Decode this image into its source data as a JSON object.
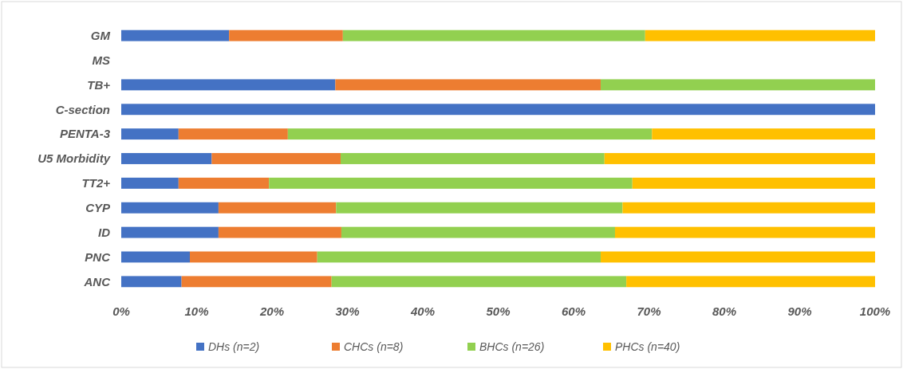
{
  "chart_data": {
    "type": "bar",
    "orientation": "horizontal",
    "stacked": true,
    "categories": [
      "GM",
      "MS",
      "TB+",
      "C-section",
      "PENTA-3",
      "U5 Morbidity",
      "TT2+",
      "CYP",
      "ID",
      "PNC",
      "ANC"
    ],
    "series": [
      {
        "name": "DHs (n=2)",
        "color": "#4472c4",
        "values": [
          14.3,
          null,
          28.4,
          100,
          7.6,
          12.0,
          7.6,
          12.9,
          12.9,
          9.1,
          8.0
        ]
      },
      {
        "name": "CHCs (n=8)",
        "color": "#ed7d31",
        "values": [
          15.1,
          null,
          35.2,
          0,
          14.5,
          17.1,
          12.0,
          15.6,
          16.3,
          16.9,
          19.9
        ]
      },
      {
        "name": "BHCs (n=26)",
        "color": "#92d050",
        "values": [
          40.1,
          null,
          36.4,
          0,
          48.3,
          35.0,
          48.2,
          38.0,
          36.3,
          37.6,
          39.1
        ]
      },
      {
        "name": "PHCs (n=40)",
        "color": "#ffc000",
        "values": [
          30.5,
          null,
          0,
          0,
          29.6,
          35.9,
          32.2,
          33.5,
          34.5,
          36.4,
          33.0
        ]
      }
    ],
    "xlim": [
      0,
      100
    ],
    "xticks": [
      {
        "value": 0,
        "label": "0%"
      },
      {
        "value": 10,
        "label": "10%"
      },
      {
        "value": 20,
        "label": "20%"
      },
      {
        "value": 30,
        "label": "30%"
      },
      {
        "value": 40,
        "label": "40%"
      },
      {
        "value": 50,
        "label": "50%"
      },
      {
        "value": 60,
        "label": "60%"
      },
      {
        "value": 70,
        "label": "70%"
      },
      {
        "value": 80,
        "label": "80%"
      },
      {
        "value": 90,
        "label": "90%"
      },
      {
        "value": 100,
        "label": "100%"
      }
    ],
    "legend": "bottom",
    "grid": false
  }
}
